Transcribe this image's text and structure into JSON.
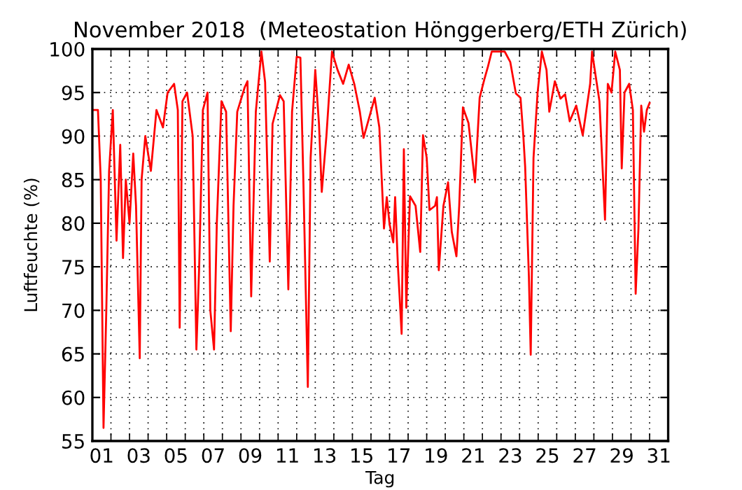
{
  "chart_data": {
    "type": "line",
    "title": "November 2018  (Meteostation Hönggerberg/ETH Zürich)",
    "xlabel": "Tag",
    "ylabel": "Luftfeuchte (%)",
    "series": [
      {
        "color": "#ff0000",
        "x": [
          0.0,
          0.3,
          0.45,
          0.6,
          0.75,
          0.9,
          1.1,
          1.3,
          1.5,
          1.65,
          1.8,
          2.0,
          2.2,
          2.35,
          2.55,
          2.65,
          2.85,
          3.15,
          3.45,
          3.8,
          4.05,
          4.4,
          4.6,
          4.7,
          4.85,
          5.1,
          5.4,
          5.6,
          5.75,
          5.95,
          6.2,
          6.35,
          6.55,
          6.7,
          6.95,
          7.2,
          7.45,
          7.6,
          7.8,
          8.2,
          8.35,
          8.55,
          8.8,
          9.1,
          9.3,
          9.55,
          9.7,
          10.1,
          10.3,
          10.55,
          10.75,
          11.0,
          11.2,
          11.35,
          11.6,
          11.75,
          12.0,
          12.2,
          12.35,
          12.6,
          12.9,
          13.2,
          13.5,
          13.8,
          14.1,
          14.4,
          14.6,
          15.2,
          15.45,
          15.7,
          15.85,
          16.0,
          16.2,
          16.3,
          16.45,
          16.65,
          16.77,
          16.9,
          17.1,
          17.4,
          17.65,
          17.8,
          18.0,
          18.15,
          18.45,
          18.55,
          18.65,
          18.9,
          19.15,
          19.35,
          19.6,
          19.75,
          19.95,
          20.25,
          20.6,
          20.85,
          21.1,
          21.3,
          21.5,
          22.2,
          22.5,
          22.8,
          23.05,
          23.2,
          23.3,
          23.5,
          23.6,
          23.75,
          23.97,
          24.2,
          24.45,
          24.6,
          24.9,
          25.2,
          25.45,
          25.7,
          26.05,
          26.4,
          26.8,
          26.9,
          27.3,
          27.6,
          27.75,
          27.95,
          28.15,
          28.4,
          28.5,
          28.65,
          28.9,
          29.1,
          29.25,
          29.4,
          29.55,
          29.7,
          29.85,
          30.0
        ],
        "values": [
          93,
          93,
          85,
          56.5,
          70,
          86,
          93,
          78,
          89,
          76,
          85,
          80,
          88,
          82,
          64.5,
          85,
          90,
          86,
          93,
          91,
          95,
          96,
          93,
          68,
          94,
          95,
          90,
          65.5,
          75,
          93,
          95,
          70,
          65.5,
          80,
          94,
          92.8,
          67.6,
          82,
          92.8,
          95.6,
          96.3,
          71.6,
          92.8,
          99.7,
          96.2,
          75.6,
          91.4,
          94.7,
          94,
          72.4,
          92.8,
          99.1,
          99,
          85.8,
          61.2,
          87.5,
          97.6,
          91.4,
          83.6,
          90,
          99.7,
          97.6,
          96,
          98.2,
          96,
          92.8,
          89.8,
          94.4,
          91,
          79.4,
          83,
          79.9,
          77.8,
          83,
          75.1,
          67.3,
          88.5,
          70.3,
          83.1,
          82,
          76.7,
          90.1,
          87.5,
          81.5,
          82,
          83,
          74.6,
          82,
          84.7,
          79,
          76.2,
          82,
          93.3,
          91.5,
          84.7,
          94.4,
          96.5,
          98,
          99.7,
          99.7,
          98.5,
          94.9,
          94.4,
          90.1,
          86.5,
          74,
          64.9,
          87.5,
          95,
          99.7,
          97.6,
          92.8,
          96.3,
          94.3,
          94.8,
          91.7,
          93.5,
          90.1,
          96,
          99.7,
          94,
          80.4,
          96,
          95,
          99.7,
          97.6,
          86.3,
          95,
          96,
          93,
          71.9,
          79.4,
          93.5,
          90.5,
          93,
          93.8
        ]
      }
    ],
    "xlim": [
      0,
      31
    ],
    "xticks": [
      {
        "value": 0.5,
        "label": "01"
      },
      {
        "value": 2.5,
        "label": "03"
      },
      {
        "value": 4.5,
        "label": "05"
      },
      {
        "value": 6.5,
        "label": "07"
      },
      {
        "value": 8.5,
        "label": "09"
      },
      {
        "value": 10.5,
        "label": "11"
      },
      {
        "value": 12.5,
        "label": "13"
      },
      {
        "value": 14.5,
        "label": "15"
      },
      {
        "value": 16.5,
        "label": "17"
      },
      {
        "value": 18.5,
        "label": "19"
      },
      {
        "value": 20.5,
        "label": "21"
      },
      {
        "value": 22.5,
        "label": "23"
      },
      {
        "value": 24.5,
        "label": "25"
      },
      {
        "value": 26.5,
        "label": "27"
      },
      {
        "value": 28.5,
        "label": "29"
      },
      {
        "value": 30.5,
        "label": "31"
      },
      {
        "value": 1,
        "label": null
      },
      {
        "value": 2,
        "label": null
      },
      {
        "value": 3,
        "label": null
      },
      {
        "value": 4,
        "label": null
      },
      {
        "value": 5,
        "label": null
      },
      {
        "value": 6,
        "label": null
      },
      {
        "value": 7,
        "label": null
      },
      {
        "value": 8,
        "label": null
      },
      {
        "value": 9,
        "label": null
      },
      {
        "value": 10,
        "label": null
      },
      {
        "value": 11,
        "label": null
      },
      {
        "value": 12,
        "label": null
      },
      {
        "value": 13,
        "label": null
      },
      {
        "value": 14,
        "label": null
      },
      {
        "value": 15,
        "label": null
      },
      {
        "value": 16,
        "label": null
      },
      {
        "value": 17,
        "label": null
      },
      {
        "value": 18,
        "label": null
      },
      {
        "value": 19,
        "label": null
      },
      {
        "value": 20,
        "label": null
      },
      {
        "value": 21,
        "label": null
      },
      {
        "value": 22,
        "label": null
      },
      {
        "value": 23,
        "label": null
      },
      {
        "value": 24,
        "label": null
      },
      {
        "value": 25,
        "label": null
      },
      {
        "value": 26,
        "label": null
      },
      {
        "value": 27,
        "label": null
      },
      {
        "value": 28,
        "label": null
      },
      {
        "value": 29,
        "label": null
      },
      {
        "value": 30,
        "label": null
      }
    ],
    "ylim": [
      55,
      100
    ],
    "yticks": [
      55,
      60,
      65,
      70,
      75,
      80,
      85,
      90,
      95,
      100
    ],
    "grid": true,
    "line_style": "solid",
    "marker": "none"
  }
}
